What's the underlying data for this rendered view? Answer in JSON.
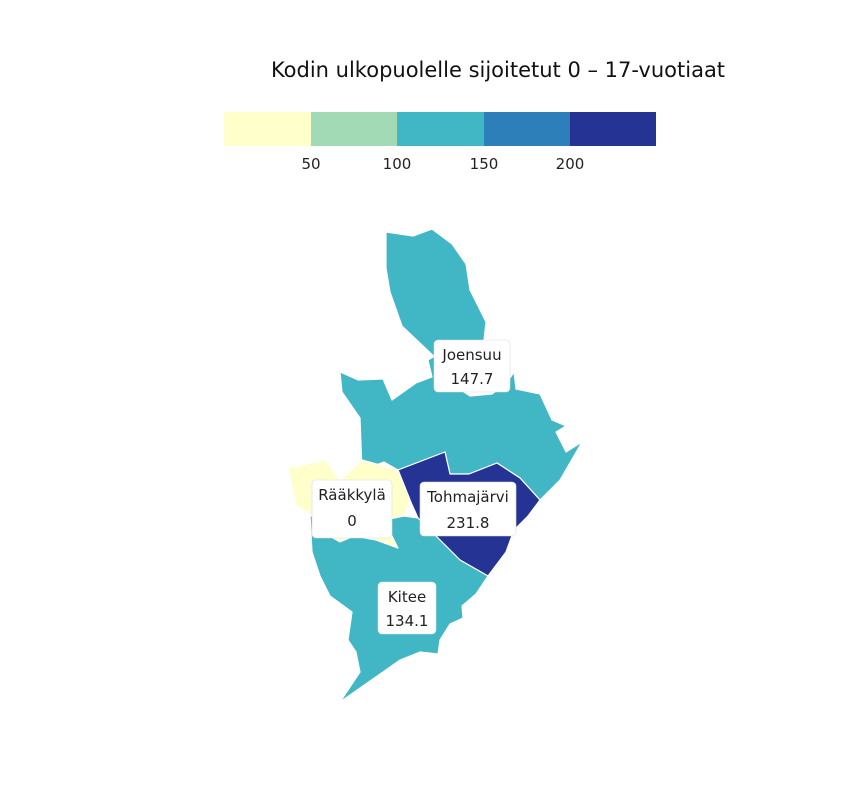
{
  "title": "Kodin ulkopuolelle sijoitetut 0 – 17-vuotiaat",
  "legend": {
    "colors": [
      "#ffffcc",
      "#a1dab4",
      "#41b6c4",
      "#2c7fb8",
      "#253494"
    ],
    "ticks": [
      "50",
      "100",
      "150",
      "200"
    ]
  },
  "map_data": {
    "type": "choropleth",
    "regions": [
      {
        "name": "Joensuu",
        "value": "147.7",
        "color": "#41b6c4"
      },
      {
        "name": "Rääkkylä",
        "value": "0",
        "color": "#ffffcc"
      },
      {
        "name": "Tohmajärvi",
        "value": "231.8",
        "color": "#253494"
      },
      {
        "name": "Kitee",
        "value": "134.1",
        "color": "#41b6c4"
      }
    ]
  }
}
